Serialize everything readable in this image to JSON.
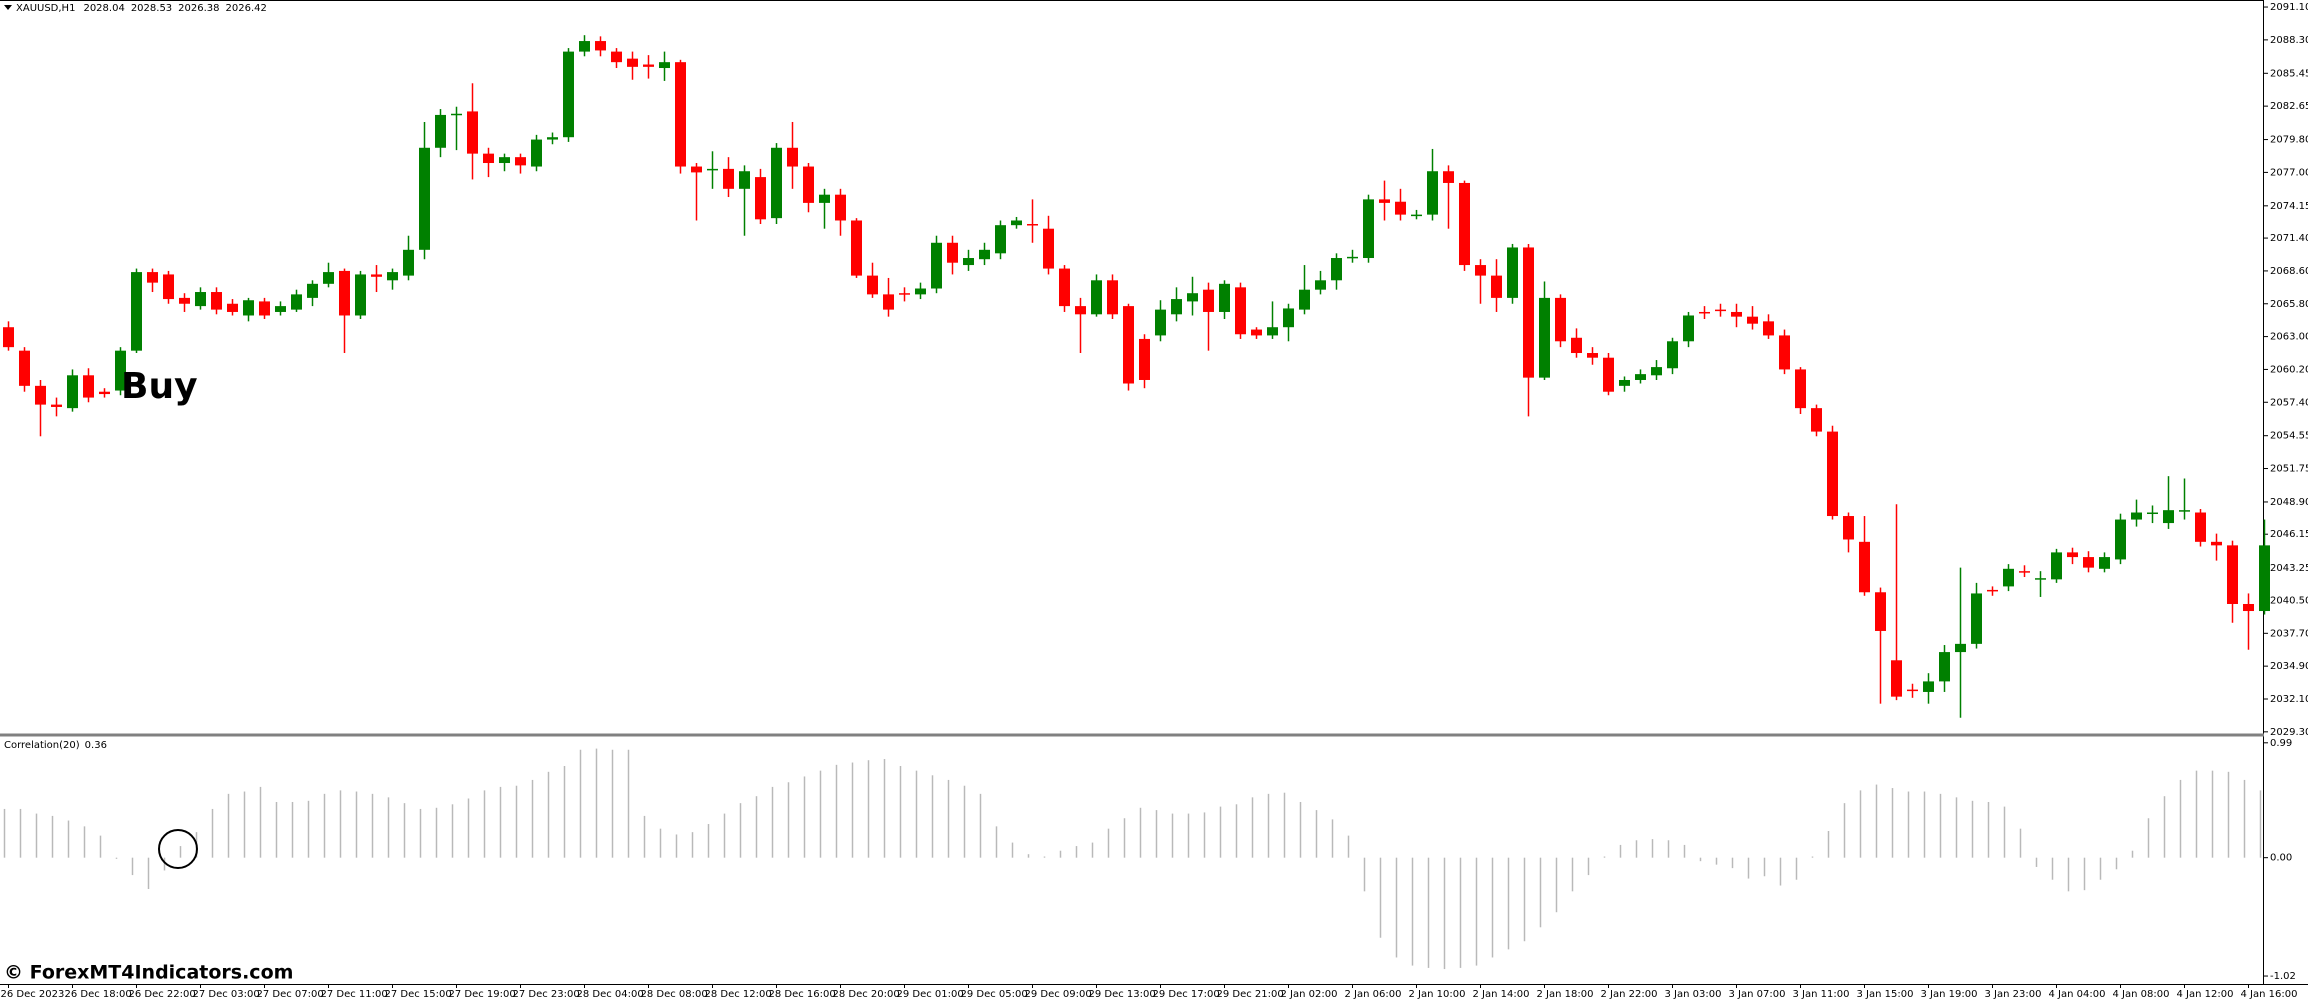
{
  "chart_data": [
    {
      "type": "candlestick",
      "symbol": "XAUUSD,H1",
      "header_values": [
        2028.04,
        2028.53,
        2026.38,
        2026.42
      ],
      "annotation": "Buy",
      "watermark": "© ForexMT4Indicators.com",
      "up_color": "#008000",
      "down_color": "#ff0000",
      "ylim": [
        2029.2,
        2091.7
      ],
      "yticks": [
        {
          "value": 2091.1,
          "label": "2091.10"
        },
        {
          "value": 2088.3,
          "label": "2088.30"
        },
        {
          "value": 2085.45,
          "label": "2085.45"
        },
        {
          "value": 2082.65,
          "label": "2082.65"
        },
        {
          "value": 2079.8,
          "label": "2079.80"
        },
        {
          "value": 2077.0,
          "label": "2077.00"
        },
        {
          "value": 2074.15,
          "label": "2074.15"
        },
        {
          "value": 2071.4,
          "label": "2071.40"
        },
        {
          "value": 2068.6,
          "label": "2068.60"
        },
        {
          "value": 2065.8,
          "label": "2065.80"
        },
        {
          "value": 2063.0,
          "label": "2063.00"
        },
        {
          "value": 2060.2,
          "label": "2060.20"
        },
        {
          "value": 2057.4,
          "label": "2057.40"
        },
        {
          "value": 2054.55,
          "label": "2054.55"
        },
        {
          "value": 2051.75,
          "label": "2051.75"
        },
        {
          "value": 2048.9,
          "label": "2048.90"
        },
        {
          "value": 2046.15,
          "label": "2046.15"
        },
        {
          "value": 2043.25,
          "label": "2043.25"
        },
        {
          "value": 2040.5,
          "label": "2040.50"
        },
        {
          "value": 2037.7,
          "label": "2037.70"
        },
        {
          "value": 2034.9,
          "label": "2034.90"
        },
        {
          "value": 2032.1,
          "label": "2032.10"
        },
        {
          "value": 2029.3,
          "label": "2029.30"
        }
      ],
      "x_labels": [
        "26 Dec 2023",
        "26 Dec 18:00",
        "26 Dec 22:00",
        "27 Dec 03:00",
        "27 Dec 07:00",
        "27 Dec 11:00",
        "27 Dec 15:00",
        "27 Dec 19:00",
        "27 Dec 23:00",
        "28 Dec 04:00",
        "28 Dec 08:00",
        "28 Dec 12:00",
        "28 Dec 16:00",
        "28 Dec 20:00",
        "29 Dec 01:00",
        "29 Dec 05:00",
        "29 Dec 09:00",
        "29 Dec 13:00",
        "29 Dec 17:00",
        "29 Dec 21:00",
        "2 Jan 02:00",
        "2 Jan 06:00",
        "2 Jan 10:00",
        "2 Jan 14:00",
        "2 Jan 18:00",
        "2 Jan 22:00",
        "3 Jan 03:00",
        "3 Jan 07:00",
        "3 Jan 11:00",
        "3 Jan 15:00",
        "3 Jan 19:00",
        "3 Jan 23:00",
        "4 Jan 04:00",
        "4 Jan 08:00",
        "4 Jan 12:00",
        "4 Jan 16:00"
      ],
      "ohlc": [
        [
          2063.8,
          2064.3,
          2061.8,
          2062.1
        ],
        [
          2061.8,
          2062.1,
          2058.3,
          2058.8
        ],
        [
          2058.8,
          2059.3,
          2054.5,
          2057.2
        ],
        [
          2057.2,
          2057.8,
          2056.2,
          2057.0
        ],
        [
          2056.9,
          2060.2,
          2056.6,
          2059.7
        ],
        [
          2059.7,
          2060.3,
          2057.4,
          2057.8
        ],
        [
          2058.3,
          2058.6,
          2057.8,
          2058.1
        ],
        [
          2058.4,
          2062.1,
          2058.0,
          2061.8
        ],
        [
          2061.8,
          2068.8,
          2061.6,
          2068.5
        ],
        [
          2068.5,
          2068.8,
          2066.8,
          2067.6
        ],
        [
          2068.3,
          2068.6,
          2065.8,
          2066.2
        ],
        [
          2066.3,
          2066.7,
          2065.1,
          2065.8
        ],
        [
          2065.6,
          2067.2,
          2065.3,
          2066.8
        ],
        [
          2066.8,
          2067.2,
          2064.9,
          2065.3
        ],
        [
          2065.8,
          2066.2,
          2064.8,
          2065.1
        ],
        [
          2064.8,
          2066.3,
          2064.3,
          2066.1
        ],
        [
          2066.0,
          2066.3,
          2064.5,
          2064.8
        ],
        [
          2065.1,
          2066.0,
          2064.8,
          2065.6
        ],
        [
          2065.3,
          2067.0,
          2065.1,
          2066.6
        ],
        [
          2066.3,
          2067.8,
          2065.6,
          2067.5
        ],
        [
          2067.5,
          2069.3,
          2067.2,
          2068.5
        ],
        [
          2068.6,
          2068.8,
          2061.6,
          2064.8
        ],
        [
          2064.8,
          2068.6,
          2064.5,
          2068.3
        ],
        [
          2068.3,
          2069.1,
          2066.8,
          2068.1
        ],
        [
          2067.8,
          2068.8,
          2067.0,
          2068.5
        ],
        [
          2068.2,
          2071.6,
          2067.8,
          2070.4
        ],
        [
          2070.4,
          2081.3,
          2069.6,
          2079.1
        ],
        [
          2079.1,
          2082.4,
          2078.3,
          2081.9
        ],
        [
          2081.9,
          2082.6,
          2078.9,
          2082.0
        ],
        [
          2082.2,
          2084.6,
          2076.4,
          2078.6
        ],
        [
          2078.6,
          2079.1,
          2076.6,
          2077.8
        ],
        [
          2077.8,
          2078.6,
          2077.1,
          2078.3
        ],
        [
          2078.3,
          2078.6,
          2076.9,
          2077.6
        ],
        [
          2077.5,
          2080.2,
          2077.1,
          2079.8
        ],
        [
          2079.8,
          2080.4,
          2079.4,
          2080.0
        ],
        [
          2080.0,
          2087.6,
          2079.6,
          2087.3
        ],
        [
          2087.3,
          2088.7,
          2086.9,
          2088.2
        ],
        [
          2088.2,
          2088.6,
          2086.9,
          2087.4
        ],
        [
          2087.3,
          2087.6,
          2085.9,
          2086.4
        ],
        [
          2086.7,
          2087.3,
          2084.9,
          2086.0
        ],
        [
          2086.2,
          2087.0,
          2085.0,
          2086.0
        ],
        [
          2085.9,
          2087.3,
          2084.8,
          2086.4
        ],
        [
          2086.4,
          2086.6,
          2076.9,
          2077.5
        ],
        [
          2077.5,
          2077.8,
          2072.9,
          2077.0
        ],
        [
          2077.2,
          2078.8,
          2075.6,
          2077.3
        ],
        [
          2077.3,
          2078.3,
          2074.9,
          2075.6
        ],
        [
          2075.6,
          2077.6,
          2071.6,
          2077.1
        ],
        [
          2076.6,
          2077.3,
          2072.6,
          2073.0
        ],
        [
          2073.1,
          2079.5,
          2072.6,
          2079.1
        ],
        [
          2079.1,
          2081.3,
          2075.6,
          2077.5
        ],
        [
          2077.5,
          2077.8,
          2073.6,
          2074.4
        ],
        [
          2074.4,
          2075.6,
          2072.2,
          2075.1
        ],
        [
          2075.1,
          2075.6,
          2071.6,
          2072.9
        ],
        [
          2072.9,
          2073.1,
          2068.0,
          2068.2
        ],
        [
          2068.2,
          2069.3,
          2066.3,
          2066.6
        ],
        [
          2066.6,
          2068.0,
          2064.7,
          2065.3
        ],
        [
          2066.7,
          2067.2,
          2066.0,
          2066.6
        ],
        [
          2066.6,
          2067.6,
          2066.2,
          2067.1
        ],
        [
          2067.1,
          2071.6,
          2066.7,
          2071.0
        ],
        [
          2071.0,
          2071.6,
          2068.3,
          2069.3
        ],
        [
          2069.1,
          2070.4,
          2068.6,
          2069.7
        ],
        [
          2069.6,
          2071.0,
          2069.1,
          2070.4
        ],
        [
          2070.1,
          2072.9,
          2069.6,
          2072.5
        ],
        [
          2072.5,
          2073.2,
          2072.2,
          2072.9
        ],
        [
          2072.6,
          2074.7,
          2071.0,
          2072.5
        ],
        [
          2072.2,
          2073.3,
          2068.3,
          2068.8
        ],
        [
          2068.8,
          2069.1,
          2065.1,
          2065.6
        ],
        [
          2065.6,
          2066.3,
          2061.6,
          2064.9
        ],
        [
          2064.9,
          2068.3,
          2064.7,
          2067.8
        ],
        [
          2067.8,
          2068.3,
          2064.5,
          2064.9
        ],
        [
          2065.6,
          2065.8,
          2058.4,
          2059.0
        ],
        [
          2062.8,
          2063.2,
          2058.6,
          2059.3
        ],
        [
          2063.1,
          2066.1,
          2062.6,
          2065.3
        ],
        [
          2064.9,
          2067.2,
          2064.3,
          2066.2
        ],
        [
          2066.0,
          2068.1,
          2064.8,
          2066.7
        ],
        [
          2067.0,
          2067.6,
          2061.8,
          2065.1
        ],
        [
          2065.1,
          2067.8,
          2064.5,
          2067.5
        ],
        [
          2067.2,
          2067.6,
          2062.8,
          2063.2
        ],
        [
          2063.6,
          2063.8,
          2062.8,
          2063.1
        ],
        [
          2063.1,
          2066.0,
          2062.8,
          2063.8
        ],
        [
          2063.8,
          2065.8,
          2062.6,
          2065.4
        ],
        [
          2065.3,
          2069.1,
          2064.9,
          2067.0
        ],
        [
          2067.0,
          2068.6,
          2066.6,
          2067.8
        ],
        [
          2067.8,
          2070.1,
          2067.0,
          2069.7
        ],
        [
          2069.7,
          2070.4,
          2069.3,
          2069.8
        ],
        [
          2069.7,
          2075.1,
          2069.3,
          2074.7
        ],
        [
          2074.7,
          2076.3,
          2072.9,
          2074.4
        ],
        [
          2074.5,
          2075.6,
          2072.9,
          2073.4
        ],
        [
          2073.4,
          2073.8,
          2073.0,
          2073.4
        ],
        [
          2073.4,
          2079.0,
          2072.9,
          2077.1
        ],
        [
          2077.1,
          2077.6,
          2072.2,
          2076.1
        ],
        [
          2076.1,
          2076.3,
          2068.6,
          2069.1
        ],
        [
          2069.1,
          2069.6,
          2065.8,
          2068.2
        ],
        [
          2068.2,
          2069.6,
          2065.1,
          2066.3
        ],
        [
          2066.3,
          2070.9,
          2065.8,
          2070.6
        ],
        [
          2070.6,
          2070.9,
          2056.2,
          2059.5
        ],
        [
          2059.5,
          2067.7,
          2059.3,
          2066.3
        ],
        [
          2066.3,
          2066.6,
          2062.1,
          2062.6
        ],
        [
          2062.9,
          2063.7,
          2061.2,
          2061.6
        ],
        [
          2061.6,
          2062.1,
          2060.6,
          2061.2
        ],
        [
          2061.2,
          2061.6,
          2058.0,
          2058.3
        ],
        [
          2058.8,
          2059.6,
          2058.3,
          2059.3
        ],
        [
          2059.3,
          2060.2,
          2059.0,
          2059.8
        ],
        [
          2059.7,
          2061.0,
          2059.3,
          2060.4
        ],
        [
          2060.3,
          2062.9,
          2059.8,
          2062.6
        ],
        [
          2062.6,
          2065.1,
          2062.1,
          2064.8
        ],
        [
          2065.1,
          2065.6,
          2064.5,
          2065.0
        ],
        [
          2065.3,
          2065.8,
          2064.7,
          2065.2
        ],
        [
          2065.1,
          2065.8,
          2063.8,
          2064.7
        ],
        [
          2064.7,
          2065.6,
          2063.6,
          2064.1
        ],
        [
          2064.3,
          2064.9,
          2062.8,
          2063.1
        ],
        [
          2063.1,
          2063.6,
          2059.8,
          2060.2
        ],
        [
          2060.2,
          2060.4,
          2056.4,
          2056.9
        ],
        [
          2056.9,
          2057.2,
          2054.5,
          2054.9
        ],
        [
          2054.9,
          2055.4,
          2047.4,
          2047.7
        ],
        [
          2047.7,
          2048.0,
          2044.6,
          2045.7
        ],
        [
          2045.5,
          2047.7,
          2040.9,
          2041.2
        ],
        [
          2041.2,
          2041.6,
          2031.7,
          2037.9
        ],
        [
          2035.4,
          2048.7,
          2032.0,
          2032.3
        ],
        [
          2032.9,
          2033.4,
          2032.2,
          2032.8
        ],
        [
          2032.7,
          2034.3,
          2031.7,
          2033.6
        ],
        [
          2033.6,
          2036.7,
          2032.7,
          2036.1
        ],
        [
          2036.1,
          2043.3,
          2030.5,
          2036.8
        ],
        [
          2036.8,
          2042.0,
          2036.4,
          2041.1
        ],
        [
          2041.4,
          2041.7,
          2040.9,
          2041.3
        ],
        [
          2041.7,
          2043.6,
          2041.3,
          2043.2
        ],
        [
          2043.0,
          2043.5,
          2042.5,
          2042.9
        ],
        [
          2042.3,
          2043.0,
          2040.8,
          2042.4
        ],
        [
          2042.3,
          2044.9,
          2042.0,
          2044.6
        ],
        [
          2044.6,
          2045.0,
          2043.6,
          2044.2
        ],
        [
          2044.2,
          2044.7,
          2042.9,
          2043.3
        ],
        [
          2043.2,
          2044.6,
          2042.9,
          2044.2
        ],
        [
          2044.0,
          2047.9,
          2043.6,
          2047.4
        ],
        [
          2047.4,
          2049.1,
          2046.8,
          2048.0
        ],
        [
          2047.9,
          2048.6,
          2047.1,
          2048.0
        ],
        [
          2047.1,
          2051.1,
          2046.6,
          2048.2
        ],
        [
          2048.1,
          2050.9,
          2047.4,
          2048.2
        ],
        [
          2048.0,
          2048.3,
          2045.1,
          2045.5
        ],
        [
          2045.5,
          2046.2,
          2043.9,
          2045.2
        ],
        [
          2045.2,
          2045.6,
          2038.6,
          2040.2
        ],
        [
          2040.2,
          2041.1,
          2036.3,
          2039.6
        ],
        [
          2039.6,
          2047.4,
          2039.3,
          2045.2
        ]
      ]
    },
    {
      "type": "bar",
      "name": "Correlation(20)",
      "last_value": 0.36,
      "color": "#b9b9b9",
      "ylim": [
        -1.08,
        1.04
      ],
      "yticks": [
        0.99,
        {
          "value": 0,
          "label": "0.00"
        },
        -1.02
      ],
      "values": [
        0.42,
        0.42,
        0.38,
        0.36,
        0.32,
        0.27,
        0.19,
        -0.01,
        -0.15,
        -0.27,
        -0.11,
        0.1,
        0.22,
        0.42,
        0.55,
        0.57,
        0.61,
        0.48,
        0.48,
        0.49,
        0.55,
        0.58,
        0.57,
        0.55,
        0.52,
        0.47,
        0.42,
        0.43,
        0.46,
        0.51,
        0.58,
        0.61,
        0.62,
        0.67,
        0.74,
        0.79,
        0.93,
        0.94,
        0.93,
        0.93,
        0.36,
        0.25,
        0.2,
        0.22,
        0.29,
        0.38,
        0.47,
        0.53,
        0.61,
        0.65,
        0.7,
        0.75,
        0.8,
        0.82,
        0.84,
        0.85,
        0.79,
        0.75,
        0.71,
        0.67,
        0.62,
        0.55,
        0.27,
        0.13,
        0.03,
        0.01,
        0.06,
        0.1,
        0.13,
        0.25,
        0.34,
        0.43,
        0.41,
        0.38,
        0.38,
        0.39,
        0.44,
        0.46,
        0.52,
        0.55,
        0.56,
        0.48,
        0.41,
        0.33,
        0.19,
        -0.29,
        -0.69,
        -0.86,
        -0.93,
        -0.95,
        -0.96,
        -0.95,
        -0.93,
        -0.86,
        -0.79,
        -0.72,
        -0.6,
        -0.47,
        -0.29,
        -0.15,
        0.01,
        0.11,
        0.15,
        0.16,
        0.15,
        0.11,
        -0.03,
        -0.06,
        -0.09,
        -0.18,
        -0.16,
        -0.24,
        -0.19,
        0.01,
        0.23,
        0.47,
        0.58,
        0.63,
        0.6,
        0.57,
        0.57,
        0.55,
        0.52,
        0.49,
        0.48,
        0.44,
        0.25,
        -0.08,
        -0.19,
        -0.29,
        -0.28,
        -0.19,
        -0.1,
        0.06,
        0.34,
        0.53,
        0.67,
        0.75,
        0.75,
        0.74,
        0.67,
        0.58
      ]
    }
  ]
}
